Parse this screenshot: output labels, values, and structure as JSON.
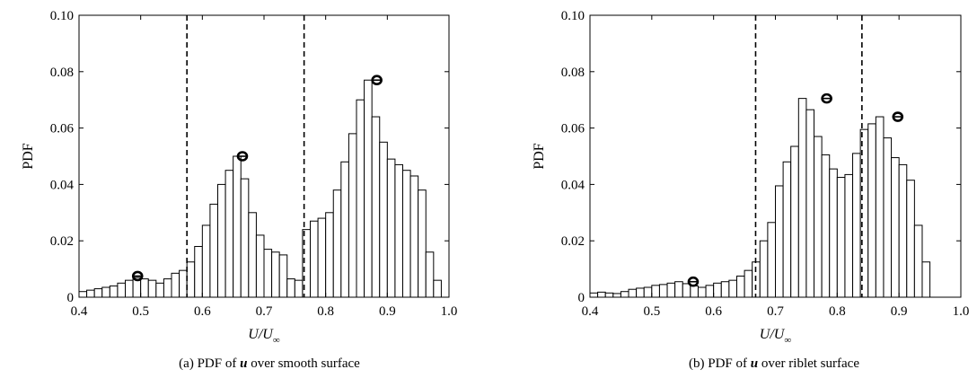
{
  "chart_data": [
    {
      "type": "bar",
      "caption_prefix": "(a) PDF of ",
      "caption_var": "u",
      "caption_suffix": " over smooth surface",
      "xlabel_num": "U",
      "xlabel_den": "U",
      "xlabel_sub": "∞",
      "ylabel": "PDF",
      "xlim": [
        0.4,
        1.0
      ],
      "ylim": [
        0,
        0.1
      ],
      "xticks": [
        0.4,
        0.5,
        0.6,
        0.7,
        0.8,
        0.9,
        1.0
      ],
      "xtick_labels": [
        "0.4",
        "0.5",
        "0.6",
        "0.7",
        "0.8",
        "0.9",
        "1.0"
      ],
      "yticks": [
        0,
        0.02,
        0.04,
        0.06,
        0.08,
        0.1
      ],
      "ytick_labels": [
        "0",
        "0.02",
        "0.04",
        "0.06",
        "0.08",
        "0.10"
      ],
      "bin_start": 0.4,
      "bin_width": 0.0125,
      "values": [
        0.002,
        0.0025,
        0.003,
        0.0035,
        0.004,
        0.005,
        0.006,
        0.007,
        0.0065,
        0.006,
        0.005,
        0.0065,
        0.0085,
        0.0095,
        0.0125,
        0.018,
        0.0255,
        0.033,
        0.04,
        0.045,
        0.05,
        0.042,
        0.03,
        0.022,
        0.017,
        0.016,
        0.015,
        0.0065,
        0.006,
        0.024,
        0.027,
        0.028,
        0.03,
        0.038,
        0.048,
        0.058,
        0.07,
        0.077,
        0.064,
        0.055,
        0.049,
        0.047,
        0.045,
        0.043,
        0.038,
        0.016,
        0.006
      ],
      "dashed_lines": [
        0.575,
        0.765
      ],
      "markers": [
        {
          "x": 0.495,
          "y": 0.0075
        },
        {
          "x": 0.665,
          "y": 0.05
        },
        {
          "x": 0.883,
          "y": 0.077
        }
      ]
    },
    {
      "type": "bar",
      "caption_prefix": "(b) PDF of ",
      "caption_var": "u",
      "caption_suffix": " over riblet surface",
      "xlabel_num": "U",
      "xlabel_den": "U",
      "xlabel_sub": "∞",
      "ylabel": "PDF",
      "xlim": [
        0.4,
        1.0
      ],
      "ylim": [
        0,
        0.1
      ],
      "xticks": [
        0.4,
        0.5,
        0.6,
        0.7,
        0.8,
        0.9,
        1.0
      ],
      "xtick_labels": [
        "0.4",
        "0.5",
        "0.6",
        "0.7",
        "0.8",
        "0.9",
        "1.0"
      ],
      "yticks": [
        0,
        0.02,
        0.04,
        0.06,
        0.08,
        0.1
      ],
      "ytick_labels": [
        "0",
        "0.02",
        "0.04",
        "0.06",
        "0.08",
        "0.10"
      ],
      "bin_start": 0.4,
      "bin_width": 0.0125,
      "values": [
        0.0015,
        0.0018,
        0.0015,
        0.0013,
        0.002,
        0.0028,
        0.0032,
        0.0035,
        0.0042,
        0.0045,
        0.005,
        0.0055,
        0.0048,
        0.004,
        0.0035,
        0.0042,
        0.005,
        0.0055,
        0.006,
        0.0075,
        0.0095,
        0.0125,
        0.02,
        0.0265,
        0.0395,
        0.048,
        0.0535,
        0.0705,
        0.0665,
        0.057,
        0.0505,
        0.0455,
        0.0425,
        0.0435,
        0.051,
        0.0595,
        0.0615,
        0.064,
        0.0565,
        0.0495,
        0.047,
        0.0415,
        0.0255,
        0.0125
      ],
      "dashed_lines": [
        0.668,
        0.84
      ],
      "markers": [
        {
          "x": 0.567,
          "y": 0.0055
        },
        {
          "x": 0.783,
          "y": 0.0705
        },
        {
          "x": 0.898,
          "y": 0.064
        }
      ]
    }
  ]
}
